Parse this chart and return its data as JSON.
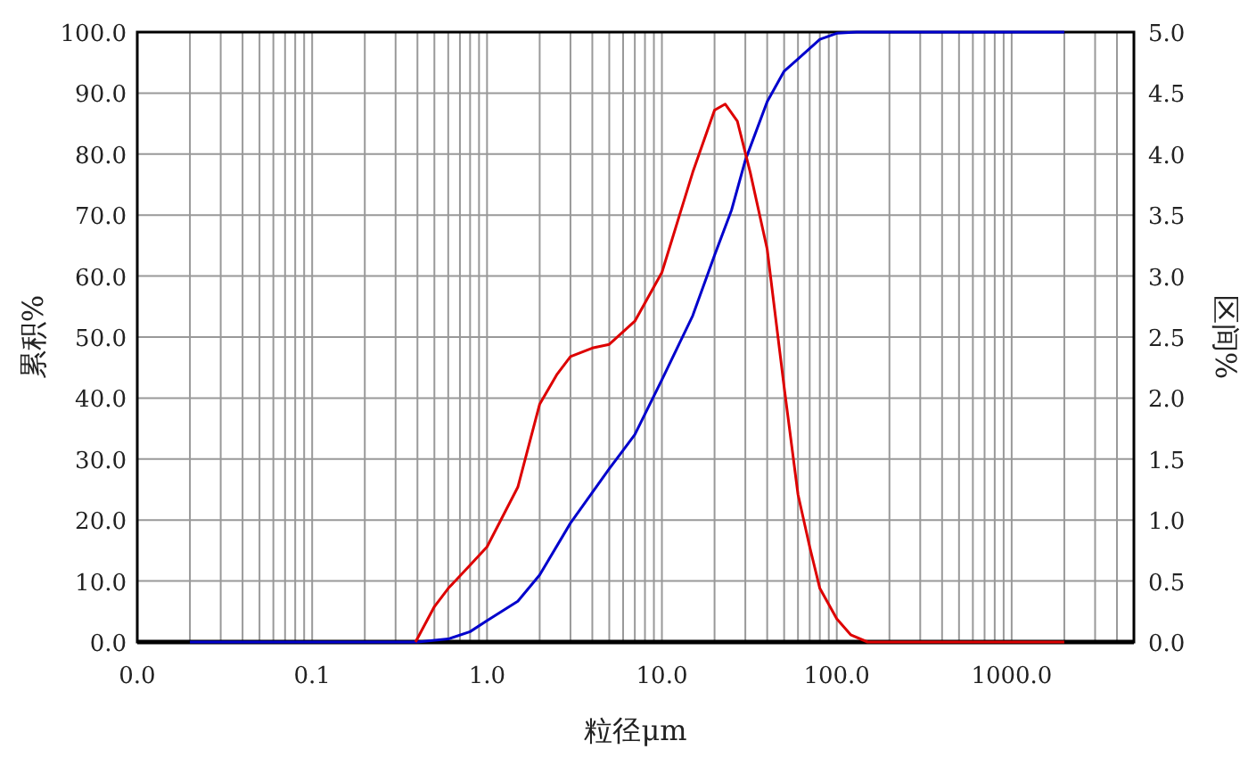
{
  "chart_data": {
    "type": "line",
    "xlabel": "粒径μm",
    "ylabel": "累积%",
    "y2label": "区间%",
    "log": "x",
    "grid": true,
    "marker": "none",
    "line_style": "solid",
    "xlim": [
      0.01,
      5000
    ],
    "xticks": [
      {
        "value": 0.01,
        "label": "0.0"
      },
      0.1,
      {
        "value": 1,
        "label": "1.0"
      },
      {
        "value": 10,
        "label": "10.0"
      },
      {
        "value": 100,
        "label": "100.0"
      },
      {
        "value": 1000,
        "label": "1000.0"
      }
    ],
    "ylim": [
      0,
      100
    ],
    "yticks": [
      {
        "value": 0,
        "label": "0.0"
      },
      {
        "value": 10,
        "label": "10.0"
      },
      {
        "value": 20,
        "label": "20.0"
      },
      {
        "value": 30,
        "label": "30.0"
      },
      {
        "value": 40,
        "label": "40.0"
      },
      {
        "value": 50,
        "label": "50.0"
      },
      {
        "value": 60,
        "label": "60.0"
      },
      {
        "value": 70,
        "label": "70.0"
      },
      {
        "value": 80,
        "label": "80.0"
      },
      {
        "value": 90,
        "label": "90.0"
      },
      {
        "value": 100,
        "label": "100.0"
      }
    ],
    "y2lim": [
      0,
      5
    ],
    "y2ticks": [
      {
        "value": 0,
        "label": "0.0"
      },
      0.5,
      {
        "value": 1,
        "label": "1.0"
      },
      1.5,
      {
        "value": 2,
        "label": "2.0"
      },
      2.5,
      {
        "value": 3,
        "label": "3.0"
      },
      3.5,
      {
        "value": 4,
        "label": "4.0"
      },
      4.5,
      {
        "value": 5,
        "label": "5.0"
      }
    ],
    "series": [
      {
        "color": "#0000cc",
        "x": [
          0.02,
          0.1,
          0.4,
          0.6,
          0.8,
          1,
          1.5,
          2,
          3,
          5,
          7,
          10,
          15,
          20,
          25,
          30,
          40,
          50,
          60,
          80,
          100,
          130,
          2000
        ],
        "values": [
          0,
          0,
          0,
          0.5,
          1.7,
          3.5,
          6.7,
          11,
          19.5,
          28.4,
          34,
          43,
          53.5,
          63.4,
          70.8,
          79,
          88.6,
          93.6,
          95.6,
          98.8,
          99.8,
          100,
          100
        ]
      },
      {
        "color": "#dd0000",
        "axis": "y2",
        "x": [
          0.39,
          0.5,
          0.6,
          0.8,
          1,
          1.5,
          2,
          2.5,
          3,
          4,
          5,
          7,
          10,
          15,
          20,
          23,
          27,
          32,
          40,
          50,
          60,
          70,
          80,
          100,
          120,
          150,
          2000
        ],
        "values": [
          0,
          0.29,
          0.44,
          0.63,
          0.78,
          1.27,
          1.95,
          2.19,
          2.34,
          2.41,
          2.44,
          2.63,
          3.03,
          3.85,
          4.36,
          4.41,
          4.27,
          3.85,
          3.22,
          2.09,
          1.21,
          0.78,
          0.44,
          0.19,
          0.06,
          0,
          0
        ]
      }
    ]
  }
}
